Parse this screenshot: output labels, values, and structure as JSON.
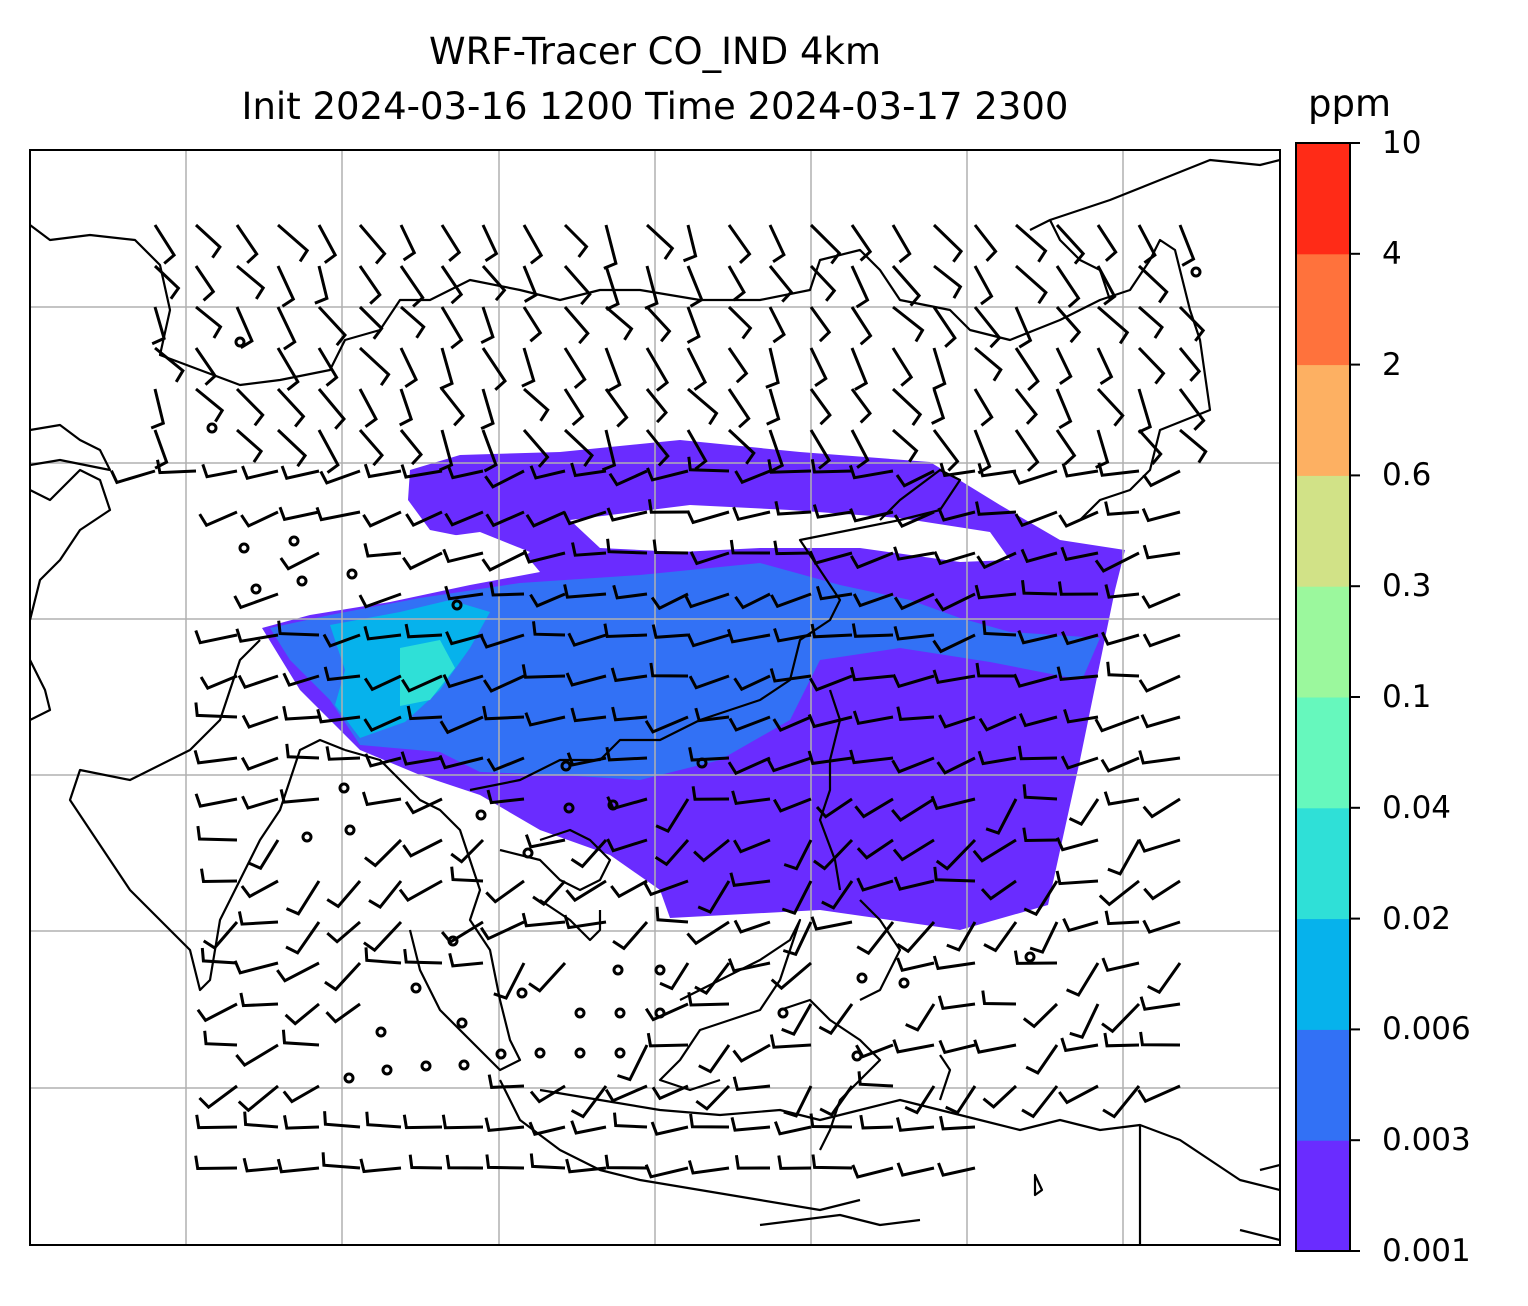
{
  "title": {
    "line1": "WRF-Tracer CO_IND 4km",
    "line2": "Init 2024-03-16 1200 Time 2024-03-17 2300"
  },
  "colorbar": {
    "unit": "ppm",
    "levels": [
      "0.001",
      "0.003",
      "0.006",
      "0.02",
      "0.04",
      "0.1",
      "0.3",
      "0.6",
      "2",
      "4",
      "10"
    ],
    "colors": [
      "#6a2cff",
      "#3271f5",
      "#06b2ec",
      "#2fe0d7",
      "#66f8bd",
      "#9bf89d",
      "#d1e287",
      "#fdb062",
      "#ff723c",
      "#ff2b17"
    ]
  },
  "map": {
    "plume_colors": {
      "low": "#6a2cff",
      "mid": "#3271f5",
      "high": "#06b2ec",
      "peak": "#2fe0d7"
    },
    "coastline_color": "#000000",
    "gridline_color": "#b0b0b0"
  }
}
